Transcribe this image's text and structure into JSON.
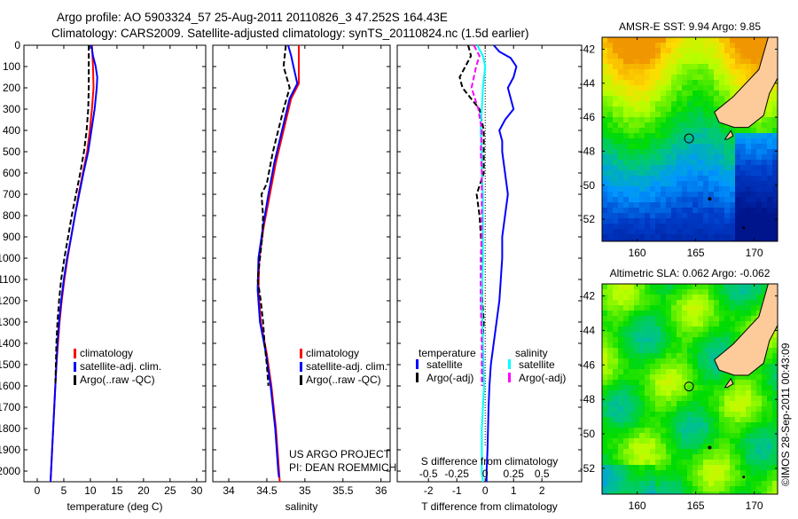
{
  "title": {
    "line1": "Argo profile: AO 5903324_57 25-Aug-2011 20110826_3 47.252S 164.43E",
    "line2": "Climatology: CARS2009. Satellite-adjusted climatology: synTS_20110824.nc (1.5d earlier)"
  },
  "credit": "©IMOS 28-Sep-2011 00:43:09",
  "project": {
    "line1": "US ARGO PROJECT",
    "line2": "PI: DEAN ROEMMICH"
  },
  "colors": {
    "climatology": "#ff0000",
    "satellite": "#0000ff",
    "argo": "#000000",
    "s_satellite": "#00ffff",
    "s_argo": "#ff00ff"
  },
  "chart_data": [
    {
      "type": "line",
      "title": "",
      "xlabel": "temperature (deg C)",
      "ylabel": "",
      "xlim": [
        -2.5,
        31.7
      ],
      "ylim": [
        2050,
        0
      ],
      "xticks": [
        0,
        5,
        10,
        15,
        20,
        25,
        30
      ],
      "yticks": [
        0,
        100,
        200,
        300,
        400,
        500,
        600,
        700,
        800,
        900,
        1000,
        1100,
        1200,
        1300,
        1400,
        1500,
        1600,
        1700,
        1800,
        1900,
        2000
      ],
      "legend": {
        "position": "bottom-center",
        "entries": [
          "climatology",
          "satellite-adj. clim.",
          "Argo(..raw -QC)"
        ]
      },
      "series": [
        {
          "name": "climatology",
          "style": "solid",
          "color": "#ff0000",
          "depth": [
            0,
            100,
            200,
            300,
            400,
            500,
            600,
            700,
            800,
            900,
            1000,
            1100,
            1200,
            1300,
            1400,
            1500,
            1600,
            1700,
            1800,
            1900,
            2000,
            2050
          ],
          "values": [
            10.3,
            10.5,
            10.6,
            10.3,
            9.9,
            9.4,
            8.6,
            7.8,
            7.1,
            6.4,
            5.7,
            5.1,
            4.6,
            4.2,
            3.9,
            3.6,
            3.4,
            3.2,
            3.0,
            2.8,
            2.6,
            2.5
          ]
        },
        {
          "name": "satellite-adj. clim.",
          "style": "solid",
          "color": "#0000ff",
          "depth": [
            0,
            50,
            100,
            150,
            200,
            300,
            400,
            500,
            600,
            700,
            800,
            900,
            1000,
            1100,
            1200,
            1300,
            1400,
            1500,
            1600,
            1700,
            1800,
            1900,
            2000,
            2050
          ],
          "values": [
            10.2,
            10.5,
            11.0,
            11.3,
            11.2,
            10.8,
            10.2,
            9.6,
            8.7,
            7.9,
            7.1,
            6.4,
            5.6,
            5.0,
            4.5,
            4.1,
            3.8,
            3.6,
            3.4,
            3.2,
            3.0,
            2.8,
            2.6,
            2.5
          ]
        },
        {
          "name": "Argo(..raw -QC)",
          "style": "dashed",
          "color": "#000000",
          "depth": [
            0,
            100,
            200,
            300,
            400,
            500,
            600,
            700,
            800,
            900,
            1000,
            1100,
            1200,
            1300,
            1400,
            1500,
            1600
          ],
          "values": [
            9.7,
            9.7,
            9.7,
            9.6,
            9.3,
            8.8,
            8.1,
            7.3,
            6.5,
            5.8,
            5.1,
            4.5,
            4.1,
            3.8,
            3.6,
            3.5,
            3.4
          ]
        }
      ]
    },
    {
      "type": "line",
      "xlabel": "salinity",
      "xlim": [
        33.79,
        36.12
      ],
      "ylim": [
        2050,
        0
      ],
      "xticks": [
        34,
        34.5,
        35,
        35.5,
        36
      ],
      "legend": {
        "position": "bottom-center",
        "entries": [
          "climatology",
          "satellite-adj. clim.",
          "Argo(..raw -QC)"
        ]
      },
      "series": [
        {
          "name": "climatology",
          "style": "solid",
          "color": "#ff0000",
          "depth": [
            0,
            100,
            180,
            250,
            400,
            550,
            700,
            850,
            1000,
            1150,
            1300,
            1450,
            1600,
            1800,
            2000,
            2050
          ],
          "values": [
            34.92,
            34.92,
            34.92,
            34.82,
            34.72,
            34.62,
            34.54,
            34.46,
            34.4,
            34.39,
            34.42,
            34.5,
            34.56,
            34.62,
            34.66,
            34.67
          ]
        },
        {
          "name": "satellite-adj. clim.",
          "style": "solid",
          "color": "#0000ff",
          "depth": [
            0,
            50,
            100,
            180,
            250,
            400,
            550,
            700,
            850,
            1000,
            1150,
            1300,
            1450,
            1600,
            1800,
            2000,
            2030
          ],
          "values": [
            34.78,
            34.82,
            34.85,
            34.9,
            34.8,
            34.7,
            34.6,
            34.52,
            34.45,
            34.39,
            34.38,
            34.41,
            34.49,
            34.55,
            34.61,
            34.65,
            34.66
          ]
        },
        {
          "name": "Argo(..raw -QC)",
          "style": "dashed",
          "color": "#000000",
          "depth": [
            0,
            100,
            200,
            300,
            400,
            500,
            650,
            700,
            800,
            900,
            1000,
            1100,
            1200,
            1300,
            1400,
            1500,
            1600
          ],
          "values": [
            34.75,
            34.72,
            34.8,
            34.72,
            34.65,
            34.58,
            34.5,
            34.43,
            34.45,
            34.44,
            34.41,
            34.38,
            34.42,
            34.45,
            34.47,
            34.5,
            34.52
          ]
        }
      ]
    },
    {
      "type": "line",
      "xlabel": "T difference from climatology",
      "x2label": "S difference from climatology",
      "xlim": [
        -3.1,
        3.4
      ],
      "x2lim": [
        -0.775,
        0.85
      ],
      "ylim": [
        2050,
        0
      ],
      "xticks": [
        -2,
        -1,
        0,
        1,
        2
      ],
      "x2ticks": [
        -0.5,
        -0.25,
        0,
        0.25,
        0.5
      ],
      "legend": {
        "position": "bottom-center",
        "groups": [
          {
            "title": "temperature",
            "entries": [
              "satellite",
              "Argo(-adj)"
            ]
          },
          {
            "title": "salinity",
            "entries": [
              "satellite",
              "Argo(-adj)"
            ]
          }
        ]
      },
      "series": [
        {
          "name": "temperature satellite",
          "axis": "T",
          "style": "solid",
          "color": "#0000ff",
          "depth": [
            0,
            30,
            60,
            100,
            150,
            200,
            250,
            300,
            350,
            400,
            450,
            500,
            600,
            700,
            800,
            900,
            1000,
            1100,
            1200,
            1300,
            1400,
            1500,
            1600,
            1700,
            1800,
            1900,
            2000,
            2050
          ],
          "values": [
            0.3,
            0.5,
            0.9,
            1.1,
            1.0,
            0.8,
            0.9,
            1.0,
            0.7,
            0.5,
            0.6,
            0.6,
            0.7,
            0.8,
            0.7,
            0.6,
            0.6,
            0.55,
            0.5,
            0.4,
            0.3,
            0.2,
            0.15,
            0.12,
            0.1,
            0.08,
            0.05,
            0.05
          ]
        },
        {
          "name": "temperature Argo(-adj)",
          "axis": "T",
          "style": "dashed",
          "color": "#000000",
          "depth": [
            0,
            50,
            100,
            150,
            200,
            250,
            300,
            400,
            500,
            600,
            700,
            800,
            900,
            1000,
            1100,
            1200,
            1300,
            1400,
            1500,
            1600
          ],
          "values": [
            -0.6,
            -0.5,
            -0.7,
            -0.9,
            -0.8,
            -0.5,
            -0.2,
            -0.05,
            -0.05,
            -0.05,
            -0.3,
            -0.2,
            -0.15,
            -0.1,
            -0.1,
            -0.1,
            -0.05,
            -0.1,
            -0.1,
            -0.05
          ]
        },
        {
          "name": "salinity satellite",
          "axis": "S",
          "style": "solid",
          "color": "#00ffff",
          "depth": [
            0,
            50,
            100,
            200,
            300,
            400,
            500,
            600,
            700,
            800,
            900,
            1000,
            1200,
            1400,
            1600,
            1800,
            2000,
            2050
          ],
          "values": [
            -0.07,
            -0.02,
            0.0,
            -0.02,
            -0.03,
            -0.04,
            -0.03,
            -0.03,
            -0.02,
            -0.02,
            -0.02,
            -0.02,
            -0.03,
            -0.02,
            -0.01,
            -0.03,
            -0.03,
            -0.02
          ]
        },
        {
          "name": "salinity Argo(-adj)",
          "axis": "S",
          "style": "dashed",
          "color": "#ff00ff",
          "depth": [
            0,
            50,
            100,
            200,
            300,
            400,
            500,
            600,
            700,
            800,
            900,
            1000,
            1200,
            1400,
            1600
          ],
          "values": [
            -0.1,
            -0.05,
            -0.08,
            -0.12,
            -0.06,
            -0.03,
            -0.04,
            -0.03,
            -0.03,
            -0.03,
            -0.03,
            -0.04,
            -0.04,
            -0.03,
            -0.03
          ]
        }
      ]
    },
    {
      "type": "heatmap",
      "title": "AMSR-E SST: 9.94 Argo: 9.85",
      "xlim": [
        157,
        172
      ],
      "ylim": [
        -53.3,
        -41.3
      ],
      "xticks": [
        160,
        165,
        170
      ],
      "yticks": [
        -42,
        -44,
        -46,
        -48,
        -50,
        -52
      ],
      "argo_location": {
        "lon": 164.43,
        "lat": -47.25
      }
    },
    {
      "type": "heatmap",
      "title": "Altimetric SLA: 0.062 Argo: -0.062",
      "xlim": [
        157,
        172
      ],
      "ylim": [
        -53.5,
        -41.3
      ],
      "xticks": [
        160,
        165,
        170
      ],
      "yticks": [
        -42,
        -44,
        -46,
        -48,
        -50,
        -52
      ],
      "argo_location": {
        "lon": 164.43,
        "lat": -47.25
      }
    }
  ]
}
